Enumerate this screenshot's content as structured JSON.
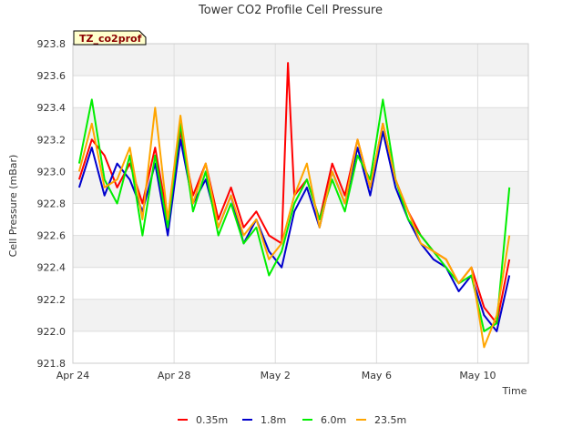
{
  "chart_data": {
    "type": "line",
    "title": "Tower CO2 Profile Cell Pressure",
    "badge": "TZ_co2prof",
    "xlabel": "Time",
    "ylabel": "Cell Pressure (mBar)",
    "ylim": [
      921.8,
      923.8
    ],
    "yticks": [
      "921.8",
      "922.0",
      "922.2",
      "922.4",
      "922.6",
      "922.8",
      "923.0",
      "923.2",
      "923.4",
      "923.6",
      "923.8"
    ],
    "xlim": [
      "2024-04-24",
      "2024-05-12"
    ],
    "xticks": [
      {
        "date": "2024-04-24",
        "label": "Apr 24"
      },
      {
        "date": "2024-04-28",
        "label": "Apr 28"
      },
      {
        "date": "2024-05-02",
        "label": "May 2"
      },
      {
        "date": "2024-05-06",
        "label": "May 6"
      },
      {
        "date": "2024-05-10",
        "label": "May 10"
      }
    ],
    "grid": true,
    "legend_position": "bottom",
    "series": [
      {
        "name": "0.35m",
        "color": "#ff0000",
        "x": [
          "2024-04-24T06:00",
          "2024-04-24T18:00",
          "2024-04-25T06:00",
          "2024-04-25T18:00",
          "2024-04-26T06:00",
          "2024-04-26T18:00",
          "2024-04-27T06:00",
          "2024-04-27T18:00",
          "2024-04-28T06:00",
          "2024-04-28T18:00",
          "2024-04-29T06:00",
          "2024-04-29T18:00",
          "2024-04-30T06:00",
          "2024-04-30T18:00",
          "2024-05-01T06:00",
          "2024-05-01T18:00",
          "2024-05-02T06:00",
          "2024-05-02T12:00",
          "2024-05-02T18:00",
          "2024-05-03T06:00",
          "2024-05-03T18:00",
          "2024-05-04T06:00",
          "2024-05-04T18:00",
          "2024-05-05T06:00",
          "2024-05-05T18:00",
          "2024-05-06T06:00",
          "2024-05-06T18:00",
          "2024-05-07T06:00",
          "2024-05-07T18:00",
          "2024-05-08T06:00",
          "2024-05-08T18:00",
          "2024-05-09T06:00",
          "2024-05-09T18:00",
          "2024-05-10T06:00",
          "2024-05-10T18:00",
          "2024-05-11T06:00"
        ],
        "y": [
          922.95,
          923.2,
          923.1,
          922.9,
          923.05,
          922.8,
          923.15,
          922.7,
          923.25,
          922.85,
          923.05,
          922.7,
          922.9,
          922.65,
          922.75,
          922.6,
          922.55,
          923.68,
          922.85,
          922.95,
          922.7,
          923.05,
          922.85,
          923.2,
          922.9,
          923.3,
          922.95,
          922.75,
          922.6,
          922.5,
          922.45,
          922.3,
          922.4,
          922.15,
          922.05,
          922.45
        ]
      },
      {
        "name": "1.8m",
        "color": "#0000cc",
        "x": [
          "2024-04-24T06:00",
          "2024-04-24T18:00",
          "2024-04-25T06:00",
          "2024-04-25T18:00",
          "2024-04-26T06:00",
          "2024-04-26T18:00",
          "2024-04-27T06:00",
          "2024-04-27T18:00",
          "2024-04-28T06:00",
          "2024-04-28T18:00",
          "2024-04-29T06:00",
          "2024-04-29T18:00",
          "2024-04-30T06:00",
          "2024-04-30T18:00",
          "2024-05-01T06:00",
          "2024-05-01T18:00",
          "2024-05-02T06:00",
          "2024-05-02T18:00",
          "2024-05-03T06:00",
          "2024-05-03T18:00",
          "2024-05-04T06:00",
          "2024-05-04T18:00",
          "2024-05-05T06:00",
          "2024-05-05T18:00",
          "2024-05-06T06:00",
          "2024-05-06T18:00",
          "2024-05-07T06:00",
          "2024-05-07T18:00",
          "2024-05-08T06:00",
          "2024-05-08T18:00",
          "2024-05-09T06:00",
          "2024-05-09T18:00",
          "2024-05-10T06:00",
          "2024-05-10T18:00",
          "2024-05-11T06:00"
        ],
        "y": [
          922.9,
          923.15,
          922.85,
          923.05,
          922.95,
          922.75,
          923.05,
          922.6,
          923.2,
          922.8,
          922.95,
          922.65,
          922.85,
          922.55,
          922.7,
          922.5,
          922.4,
          922.75,
          922.9,
          922.65,
          923.0,
          922.8,
          923.15,
          922.85,
          923.25,
          922.9,
          922.7,
          922.55,
          922.45,
          922.4,
          922.25,
          922.35,
          922.1,
          922.0,
          922.35
        ]
      },
      {
        "name": "6.0m",
        "color": "#00ee00",
        "x": [
          "2024-04-24T06:00",
          "2024-04-24T18:00",
          "2024-04-25T06:00",
          "2024-04-25T18:00",
          "2024-04-26T06:00",
          "2024-04-26T18:00",
          "2024-04-27T06:00",
          "2024-04-27T18:00",
          "2024-04-28T06:00",
          "2024-04-28T18:00",
          "2024-04-29T06:00",
          "2024-04-29T18:00",
          "2024-04-30T06:00",
          "2024-04-30T18:00",
          "2024-05-01T06:00",
          "2024-05-01T18:00",
          "2024-05-02T06:00",
          "2024-05-02T18:00",
          "2024-05-03T06:00",
          "2024-05-03T18:00",
          "2024-05-04T06:00",
          "2024-05-04T18:00",
          "2024-05-05T06:00",
          "2024-05-05T18:00",
          "2024-05-06T06:00",
          "2024-05-06T18:00",
          "2024-05-07T06:00",
          "2024-05-07T18:00",
          "2024-05-08T06:00",
          "2024-05-08T18:00",
          "2024-05-09T06:00",
          "2024-05-09T18:00",
          "2024-05-10T06:00",
          "2024-05-10T18:00",
          "2024-05-11T06:00"
        ],
        "y": [
          923.05,
          923.45,
          922.95,
          922.8,
          923.1,
          922.6,
          923.1,
          922.65,
          923.3,
          922.75,
          923.0,
          922.6,
          922.8,
          922.55,
          922.65,
          922.35,
          922.5,
          922.8,
          922.95,
          922.7,
          922.95,
          922.75,
          923.1,
          922.95,
          923.45,
          922.95,
          922.7,
          922.6,
          922.5,
          922.4,
          922.3,
          922.35,
          922.0,
          922.05,
          922.9
        ]
      },
      {
        "name": "23.5m",
        "color": "#ffa500",
        "x": [
          "2024-04-24T06:00",
          "2024-04-24T18:00",
          "2024-04-25T06:00",
          "2024-04-25T18:00",
          "2024-04-26T06:00",
          "2024-04-26T18:00",
          "2024-04-27T06:00",
          "2024-04-27T18:00",
          "2024-04-28T06:00",
          "2024-04-28T18:00",
          "2024-04-29T06:00",
          "2024-04-29T18:00",
          "2024-04-30T06:00",
          "2024-04-30T18:00",
          "2024-05-01T06:00",
          "2024-05-01T18:00",
          "2024-05-02T06:00",
          "2024-05-02T18:00",
          "2024-05-03T06:00",
          "2024-05-03T18:00",
          "2024-05-04T06:00",
          "2024-05-04T18:00",
          "2024-05-05T06:00",
          "2024-05-05T18:00",
          "2024-05-06T06:00",
          "2024-05-06T18:00",
          "2024-05-07T06:00",
          "2024-05-07T18:00",
          "2024-05-08T06:00",
          "2024-05-08T18:00",
          "2024-05-09T06:00",
          "2024-05-09T18:00",
          "2024-05-10T06:00",
          "2024-05-10T18:00",
          "2024-05-11T06:00"
        ],
        "y": [
          923.0,
          923.3,
          922.9,
          922.95,
          923.15,
          922.7,
          923.4,
          922.7,
          923.35,
          922.8,
          923.05,
          922.65,
          922.85,
          922.6,
          922.7,
          922.45,
          922.55,
          922.85,
          923.05,
          922.65,
          923.0,
          922.8,
          923.2,
          922.9,
          923.3,
          922.95,
          922.75,
          922.55,
          922.5,
          922.45,
          922.3,
          922.4,
          921.9,
          922.1,
          922.6
        ]
      }
    ]
  }
}
